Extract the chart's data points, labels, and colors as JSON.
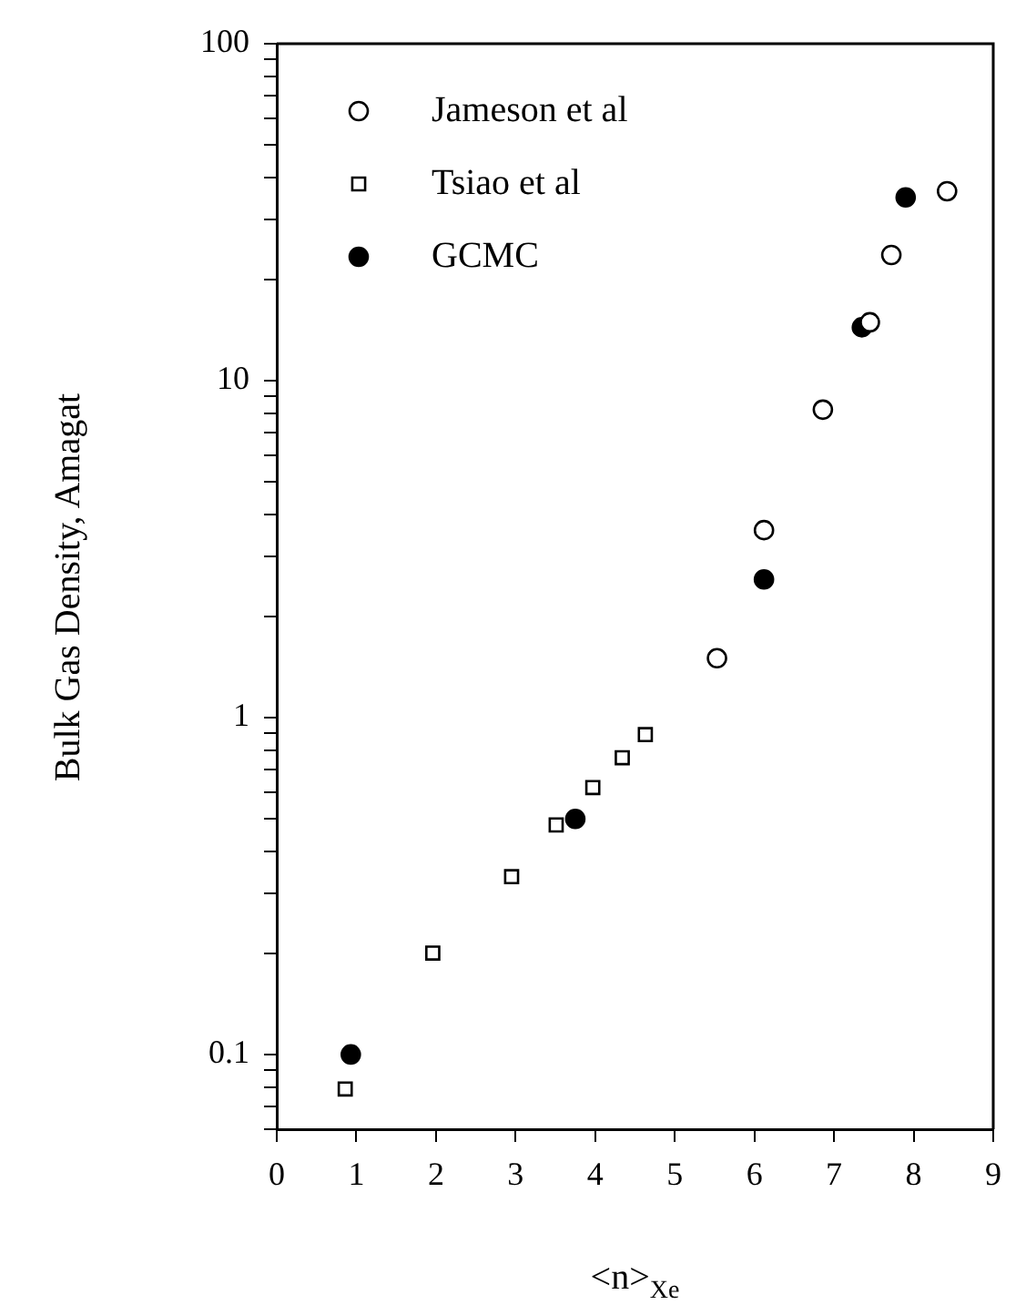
{
  "chart_data": {
    "type": "scatter",
    "xlabel": "<n>$_{Xe}$",
    "ylabel": "Bulk Gas Density, Amagat",
    "log": "y",
    "legend": "top left",
    "grid": false,
    "xlim": [
      0,
      9
    ],
    "xticks": [
      0,
      1,
      2,
      3,
      4,
      5,
      6,
      7,
      8,
      9
    ],
    "ylim": [
      0.06,
      100
    ],
    "yticks": [
      {
        "value": 0.06,
        "label": null
      },
      {
        "value": 0.07,
        "label": null
      },
      {
        "value": 0.08,
        "label": null
      },
      {
        "value": 0.09,
        "label": null
      },
      0.1,
      {
        "value": 0.2,
        "label": null
      },
      {
        "value": 0.3,
        "label": null
      },
      {
        "value": 0.4,
        "label": null
      },
      {
        "value": 0.5,
        "label": null
      },
      {
        "value": 0.6,
        "label": null
      },
      {
        "value": 0.7,
        "label": null
      },
      {
        "value": 0.8,
        "label": null
      },
      {
        "value": 0.9,
        "label": null
      },
      1,
      {
        "value": 2,
        "label": null
      },
      {
        "value": 3,
        "label": null
      },
      {
        "value": 4,
        "label": null
      },
      {
        "value": 5,
        "label": null
      },
      {
        "value": 6,
        "label": null
      },
      {
        "value": 7,
        "label": null
      },
      {
        "value": 8,
        "label": null
      },
      {
        "value": 9,
        "label": null
      },
      10,
      {
        "value": 20,
        "label": null
      },
      {
        "value": 30,
        "label": null
      },
      {
        "value": 40,
        "label": null
      },
      {
        "value": 50,
        "label": null
      },
      {
        "value": 60,
        "label": null
      },
      {
        "value": 70,
        "label": null
      },
      {
        "value": 80,
        "label": null
      },
      {
        "value": 90,
        "label": null
      },
      100
    ],
    "series": [
      {
        "name": "Jameson et al",
        "color": "#ffffff",
        "marker": "circle",
        "x": [
          5.53,
          6.12,
          6.86,
          7.45,
          7.72,
          8.42
        ],
        "values": [
          1.5,
          3.6,
          8.2,
          14.9,
          23.6,
          36.5
        ]
      },
      {
        "name": "Tsiao et al",
        "color": "#ffffff",
        "marker": "square",
        "x": [
          0.86,
          1.96,
          2.95,
          3.51,
          3.97,
          4.34,
          4.63
        ],
        "values": [
          0.079,
          0.2,
          0.337,
          0.48,
          0.62,
          0.76,
          0.89
        ]
      },
      {
        "name": "GCMC",
        "color": "#000000",
        "marker": "circle",
        "x": [
          0.93,
          3.75,
          6.12,
          7.35,
          7.9
        ],
        "values": [
          0.1,
          0.5,
          2.57,
          14.4,
          35
        ]
      }
    ]
  }
}
